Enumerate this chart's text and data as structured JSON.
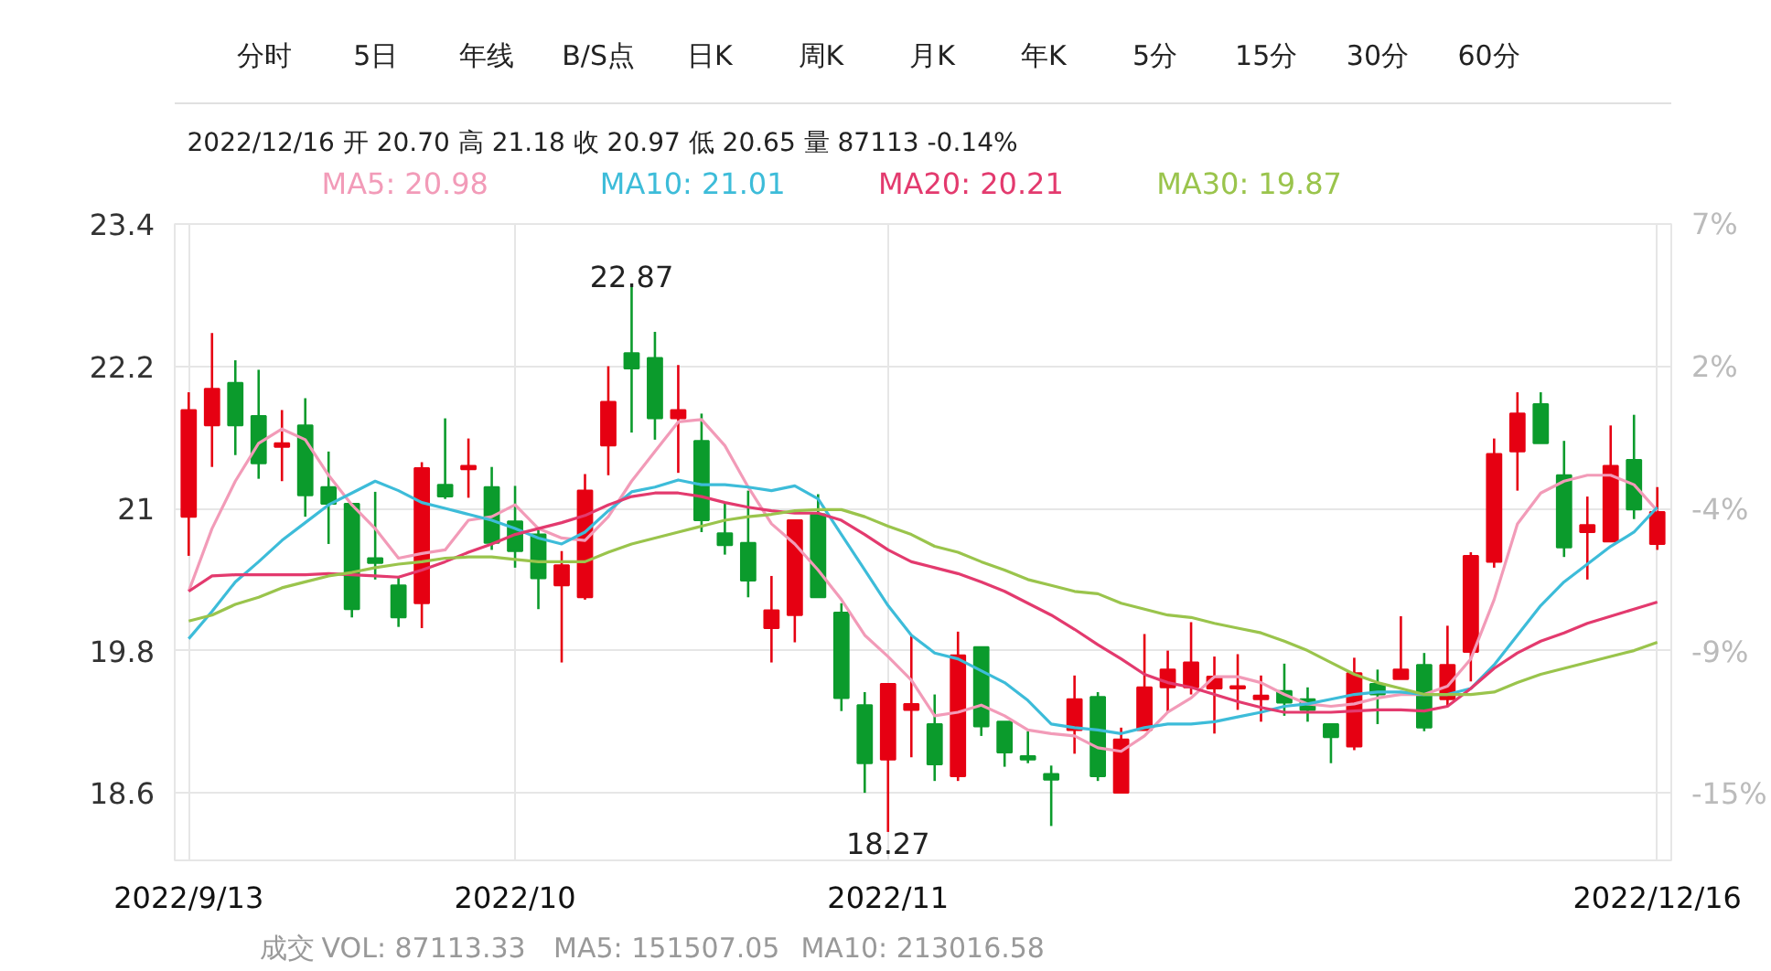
{
  "chart_data": {
    "type": "candlestick",
    "categories": [
      "2022/9/13",
      null,
      null,
      null,
      null,
      null,
      null,
      null,
      null,
      null,
      null,
      null,
      null,
      null,
      "2022/10",
      null,
      null,
      null,
      null,
      null,
      null,
      null,
      null,
      null,
      null,
      null,
      null,
      null,
      null,
      null,
      "2022/11",
      null,
      null,
      null,
      null,
      null,
      null,
      null,
      null,
      null,
      null,
      null,
      null,
      null,
      null,
      null,
      null,
      null,
      null,
      null,
      null,
      null,
      null,
      null,
      null,
      null,
      null,
      null,
      null,
      null,
      null,
      null,
      null,
      "2022/12/16"
    ],
    "ohlc": [
      [
        20.93,
        21.98,
        20.6,
        21.83
      ],
      [
        21.7,
        22.48,
        21.35,
        22.01
      ],
      [
        22.06,
        22.25,
        21.45,
        21.7
      ],
      [
        21.78,
        22.17,
        21.25,
        21.38
      ],
      [
        21.52,
        21.83,
        21.23,
        21.55
      ],
      [
        21.7,
        21.93,
        20.93,
        21.11
      ],
      [
        21.18,
        21.48,
        20.7,
        21.04
      ],
      [
        21.04,
        21.04,
        20.08,
        20.15
      ],
      [
        20.58,
        21.14,
        20.4,
        20.54
      ],
      [
        20.35,
        20.43,
        20.0,
        20.08
      ],
      [
        20.2,
        21.39,
        19.99,
        21.34
      ],
      [
        21.2,
        21.76,
        21.08,
        21.1
      ],
      [
        21.33,
        21.59,
        21.09,
        21.36
      ],
      [
        21.18,
        21.35,
        20.65,
        20.71
      ],
      [
        20.89,
        21.19,
        20.5,
        20.64
      ],
      [
        20.78,
        20.83,
        20.15,
        20.41
      ],
      [
        20.35,
        20.64,
        19.7,
        20.52
      ],
      [
        20.25,
        21.29,
        20.23,
        21.15
      ],
      [
        21.53,
        22.2,
        21.28,
        21.9
      ],
      [
        22.31,
        22.87,
        21.64,
        22.18
      ],
      [
        22.27,
        22.49,
        21.58,
        21.76
      ],
      [
        21.76,
        22.21,
        21.3,
        21.83
      ],
      [
        21.57,
        21.8,
        20.8,
        20.9
      ],
      [
        20.79,
        21.04,
        20.61,
        20.69
      ],
      [
        20.71,
        21.15,
        20.25,
        20.39
      ],
      [
        19.99,
        20.43,
        19.7,
        20.14
      ],
      [
        20.1,
        20.9,
        19.87,
        20.9
      ],
      [
        20.95,
        21.12,
        20.25,
        20.25
      ],
      [
        20.12,
        20.2,
        19.29,
        19.4
      ],
      [
        19.34,
        19.45,
        18.6,
        18.85
      ],
      [
        18.88,
        19.52,
        18.27,
        19.52
      ],
      [
        19.3,
        19.93,
        18.9,
        19.35
      ],
      [
        19.18,
        19.43,
        18.7,
        18.84
      ],
      [
        18.74,
        19.96,
        18.7,
        19.76
      ],
      [
        19.83,
        19.83,
        19.08,
        19.16
      ],
      [
        19.2,
        19.2,
        18.82,
        18.94
      ],
      [
        18.91,
        19.12,
        18.85,
        18.88
      ],
      [
        18.76,
        18.83,
        18.32,
        18.71
      ],
      [
        19.13,
        19.59,
        18.93,
        19.39
      ],
      [
        19.41,
        19.45,
        18.7,
        18.74
      ],
      [
        18.6,
        19.15,
        18.6,
        19.05
      ],
      [
        19.13,
        19.94,
        19.13,
        19.49
      ],
      [
        19.49,
        19.8,
        19.28,
        19.64
      ],
      [
        19.49,
        20.04,
        19.43,
        19.7
      ],
      [
        19.48,
        19.75,
        19.1,
        19.58
      ],
      [
        19.48,
        19.77,
        19.3,
        19.5
      ],
      [
        19.39,
        19.59,
        19.2,
        19.42
      ],
      [
        19.46,
        19.69,
        19.25,
        19.36
      ],
      [
        19.39,
        19.49,
        19.2,
        19.3
      ],
      [
        19.18,
        19.18,
        18.85,
        19.07
      ],
      [
        18.99,
        19.74,
        18.96,
        19.61
      ],
      [
        19.52,
        19.64,
        19.18,
        19.43
      ],
      [
        19.56,
        20.09,
        19.56,
        19.64
      ],
      [
        19.68,
        19.78,
        19.12,
        19.15
      ],
      [
        19.39,
        20.01,
        19.33,
        19.68
      ],
      [
        19.79,
        20.63,
        19.54,
        20.6
      ],
      [
        20.55,
        21.59,
        20.5,
        21.46
      ],
      [
        21.48,
        21.98,
        21.15,
        21.8
      ],
      [
        21.88,
        21.98,
        21.55,
        21.55
      ],
      [
        21.28,
        21.57,
        20.59,
        20.67
      ],
      [
        20.8,
        21.1,
        20.4,
        20.86
      ],
      [
        20.72,
        21.7,
        20.72,
        21.36
      ],
      [
        21.41,
        21.79,
        20.91,
        20.99
      ],
      [
        20.7,
        21.18,
        20.65,
        20.97
      ]
    ],
    "colors": [
      "#e60012",
      "#e60012",
      "#0b9b2c",
      "#0b9b2c",
      "#e60012",
      "#0b9b2c",
      "#0b9b2c",
      "#0b9b2c",
      "#0b9b2c",
      "#0b9b2c",
      "#e60012",
      "#0b9b2c",
      "#e60012",
      "#0b9b2c",
      "#0b9b2c",
      "#0b9b2c",
      "#e60012",
      "#e60012",
      "#e60012",
      "#0b9b2c",
      "#0b9b2c",
      "#e60012",
      "#0b9b2c",
      "#0b9b2c",
      "#0b9b2c",
      "#e60012",
      "#e60012",
      "#0b9b2c",
      "#0b9b2c",
      "#0b9b2c",
      "#e60012",
      "#e60012",
      "#0b9b2c",
      "#e60012",
      "#0b9b2c",
      "#0b9b2c",
      "#0b9b2c",
      "#0b9b2c",
      "#e60012",
      "#0b9b2c",
      "#e60012",
      "#e60012",
      "#e60012",
      "#e60012",
      "#e60012",
      "#e60012",
      "#e60012",
      "#0b9b2c",
      "#0b9b2c",
      "#0b9b2c",
      "#e60012",
      "#0b9b2c",
      "#e60012",
      "#0b9b2c",
      "#e60012",
      "#e60012",
      "#e60012",
      "#e60012",
      "#0b9b2c",
      "#0b9b2c",
      "#e60012",
      "#e60012",
      "#0b9b2c",
      "#e60012"
    ],
    "series": [
      {
        "name": "MA5: 20.98",
        "type": "line",
        "color": "#f29bb8",
        "values": [
          20.3,
          20.83,
          21.23,
          21.55,
          21.67,
          21.58,
          21.28,
          21.03,
          20.83,
          20.58,
          20.62,
          20.65,
          20.9,
          20.93,
          21.03,
          20.83,
          20.75,
          20.73,
          20.93,
          21.23,
          21.48,
          21.73,
          21.75,
          21.53,
          21.18,
          20.87,
          20.7,
          20.48,
          20.23,
          19.93,
          19.75,
          19.55,
          19.25,
          19.28,
          19.34,
          19.25,
          19.13,
          19.1,
          19.08,
          18.98,
          18.95,
          19.08,
          19.28,
          19.4,
          19.58,
          19.58,
          19.53,
          19.43,
          19.35,
          19.33,
          19.35,
          19.4,
          19.43,
          19.43,
          19.5,
          19.73,
          20.23,
          20.87,
          21.13,
          21.23,
          21.28,
          21.28,
          21.2,
          20.98
        ]
      },
      {
        "name": "MA10: 21.01",
        "type": "line",
        "color": "#3dbcd9",
        "values": [
          19.9,
          20.13,
          20.38,
          20.55,
          20.73,
          20.88,
          21.03,
          21.13,
          21.23,
          21.15,
          21.05,
          21.0,
          20.95,
          20.9,
          20.83,
          20.75,
          20.7,
          20.8,
          20.98,
          21.14,
          21.18,
          21.24,
          21.2,
          21.2,
          21.18,
          21.15,
          21.19,
          21.08,
          20.78,
          20.48,
          20.18,
          19.93,
          19.78,
          19.73,
          19.63,
          19.53,
          19.38,
          19.18,
          19.15,
          19.13,
          19.1,
          19.15,
          19.18,
          19.18,
          19.2,
          19.24,
          19.28,
          19.33,
          19.35,
          19.39,
          19.43,
          19.45,
          19.45,
          19.43,
          19.43,
          19.48,
          19.68,
          19.93,
          20.18,
          20.38,
          20.53,
          20.68,
          20.8,
          21.01
        ]
      },
      {
        "name": "MA20: 20.21",
        "type": "line",
        "color": "#e33a6e",
        "values": [
          20.3,
          20.43,
          20.44,
          20.44,
          20.44,
          20.44,
          20.45,
          20.44,
          20.43,
          20.42,
          20.48,
          20.55,
          20.63,
          20.7,
          20.78,
          20.83,
          20.88,
          20.94,
          21.03,
          21.1,
          21.13,
          21.13,
          21.1,
          21.05,
          21.01,
          20.98,
          20.96,
          20.96,
          20.9,
          20.78,
          20.65,
          20.55,
          20.5,
          20.45,
          20.38,
          20.3,
          20.2,
          20.1,
          19.98,
          19.85,
          19.73,
          19.6,
          19.53,
          19.49,
          19.43,
          19.37,
          19.32,
          19.28,
          19.28,
          19.28,
          19.29,
          19.3,
          19.3,
          19.29,
          19.33,
          19.48,
          19.65,
          19.78,
          19.88,
          19.95,
          20.03,
          20.09,
          20.15,
          20.21
        ]
      },
      {
        "name": "MA30: 19.87",
        "type": "line",
        "color": "#9ac44c",
        "values": [
          20.05,
          20.1,
          20.19,
          20.25,
          20.33,
          20.38,
          20.43,
          20.46,
          20.5,
          20.53,
          20.55,
          20.58,
          20.59,
          20.59,
          20.57,
          20.55,
          20.55,
          20.55,
          20.63,
          20.7,
          20.75,
          20.8,
          20.85,
          20.9,
          20.93,
          20.95,
          20.98,
          20.99,
          20.99,
          20.93,
          20.85,
          20.78,
          20.68,
          20.63,
          20.55,
          20.48,
          20.4,
          20.35,
          20.3,
          20.28,
          20.2,
          20.15,
          20.1,
          20.08,
          20.03,
          19.99,
          19.95,
          19.88,
          19.8,
          19.7,
          19.6,
          19.53,
          19.48,
          19.43,
          19.43,
          19.43,
          19.45,
          19.53,
          19.6,
          19.65,
          19.7,
          19.75,
          19.8,
          19.87
        ]
      }
    ],
    "ylim": [
      18.03,
      23.4
    ],
    "yticks": [
      23.4,
      22.2,
      21,
      19.8,
      18.6
    ],
    "y2lim": [
      -17.56,
      7.0
    ],
    "y2ticks": [
      {
        "value": 7.0,
        "label": "7%"
      },
      {
        "value": 1.5,
        "label": "2%"
      },
      {
        "value": -4.0,
        "label": "-4%"
      },
      {
        "value": -9.5,
        "label": "-9%"
      },
      {
        "value": -15.0,
        "label": "-15%"
      }
    ],
    "grid": true,
    "annotations": [
      "分时",
      "5日",
      "年线",
      "B/S点",
      "日K",
      "周K",
      "月K",
      "年K",
      "5分",
      "15分",
      "30分",
      "60分",
      "2022/12/16 开 20.70 高 21.18 收 20.97 低 20.65 量 87113 -0.14%",
      "成交",
      "VOL: 87113.33",
      "MA5: 151507.05",
      "MA10: 213016.58",
      {
        "text": "22.87",
        "y": 22.87
      },
      {
        "text": "18.27",
        "y": 18.27
      }
    ]
  }
}
